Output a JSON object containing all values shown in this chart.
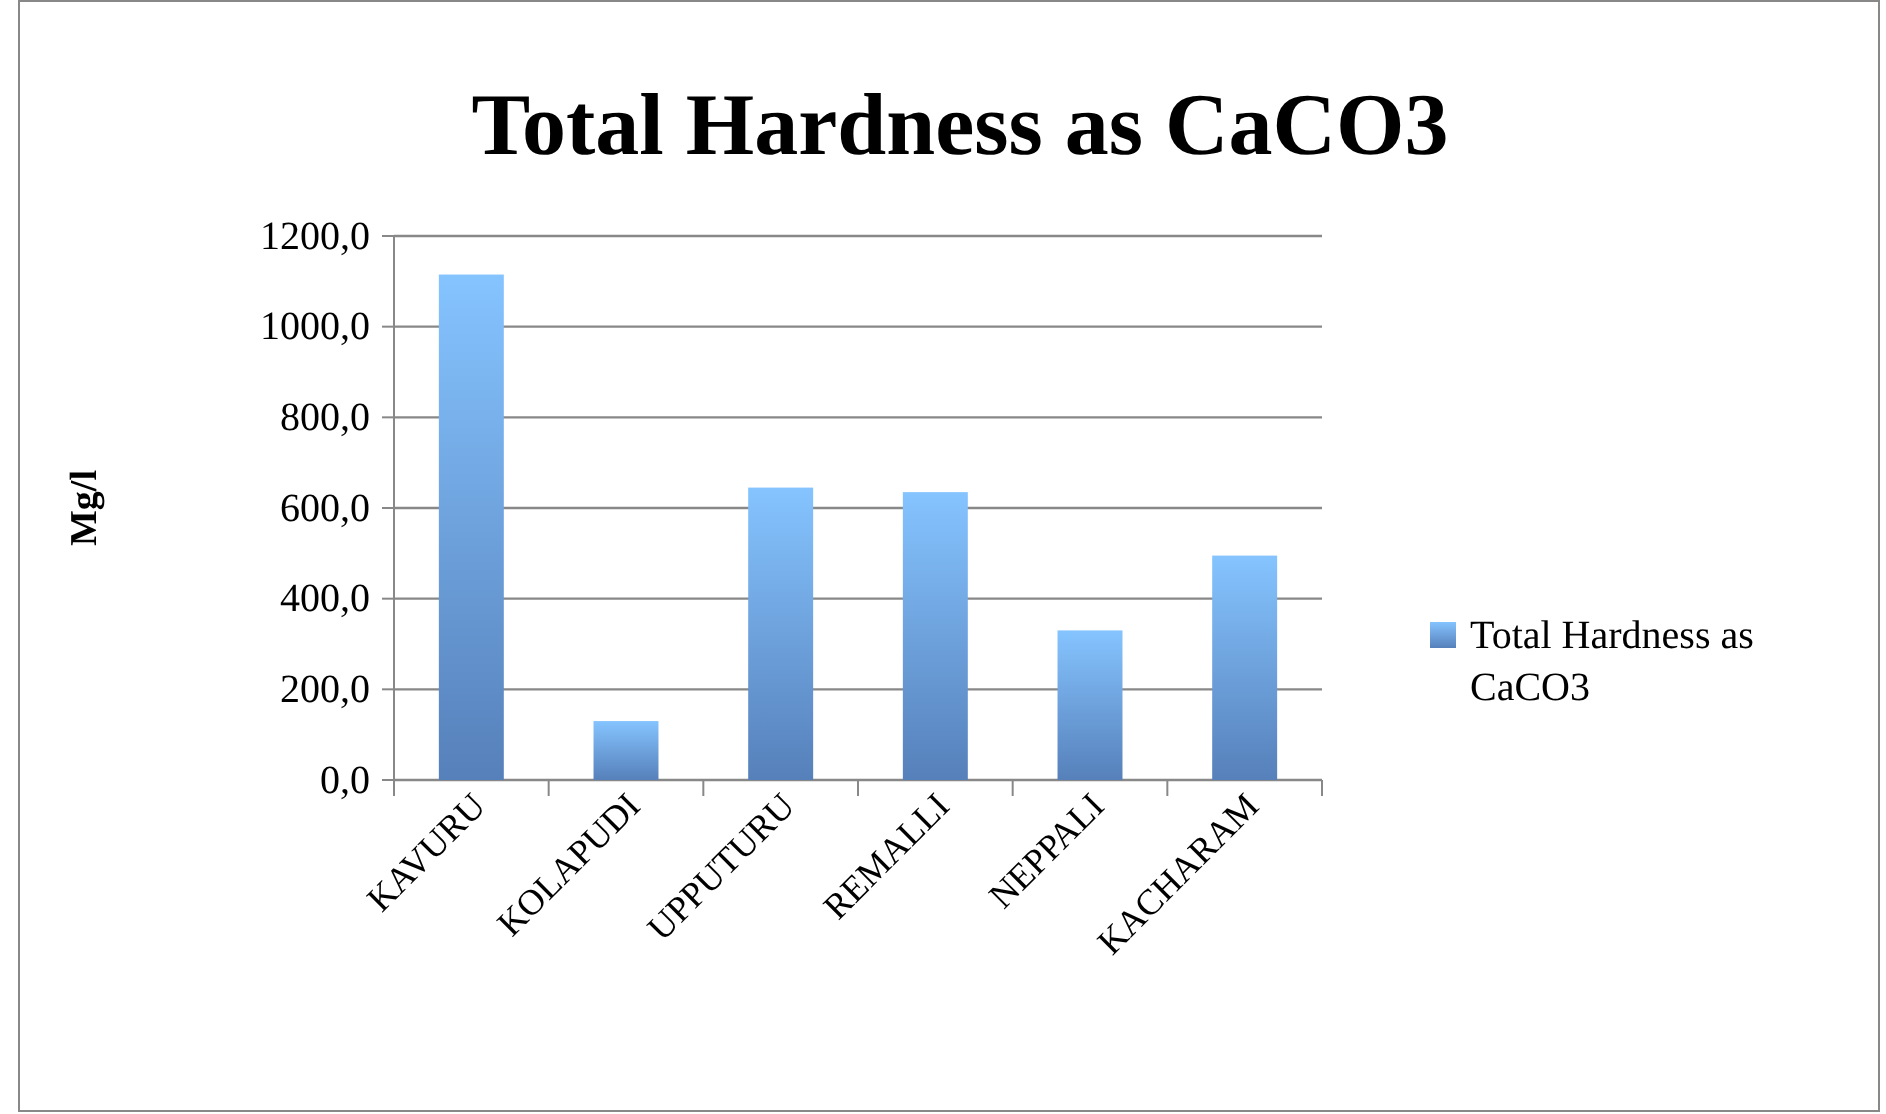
{
  "chart_data": {
    "type": "bar",
    "title": "Total Hardness as CaCO3",
    "ylabel": "Mg/l",
    "categories": [
      "KAVURU",
      "KOLAPUDI",
      "UPPUTURU",
      "REMALLI",
      "NEPPALI",
      "KACHARAM"
    ],
    "series": [
      {
        "name": "Total Hardness as CaCO3",
        "color": "#6b9ee6",
        "values": [
          1115,
          130,
          645,
          635,
          330,
          495
        ]
      }
    ],
    "ylim": [
      0,
      1200
    ],
    "yticks": [
      {
        "value": 0,
        "label": "0,0"
      },
      {
        "value": 200,
        "label": "200,0"
      },
      {
        "value": 400,
        "label": "400,0"
      },
      {
        "value": 600,
        "label": "600,0"
      },
      {
        "value": 800,
        "label": "800,0"
      },
      {
        "value": 1000,
        "label": "1000,0"
      },
      {
        "value": 1200,
        "label": "1200,0"
      }
    ],
    "grid": "y",
    "legend": "right"
  }
}
